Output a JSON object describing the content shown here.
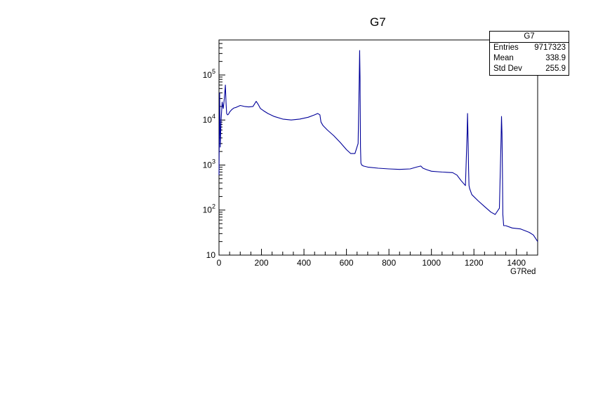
{
  "chart_data": {
    "type": "line",
    "title": "G7",
    "xlabel": "G7Red",
    "ylabel": "",
    "xlim": [
      0,
      1500
    ],
    "ylim": [
      10,
      600000
    ],
    "ylog": true,
    "xticks": [
      0,
      200,
      400,
      600,
      800,
      1000,
      1200,
      1400
    ],
    "xtick_labels": [
      "0",
      "200",
      "400",
      "600",
      "800",
      "1000",
      "1200",
      "1400"
    ],
    "yticks": [
      10,
      100,
      1000,
      10000,
      100000
    ],
    "ytick_labels": [
      {
        "base": "10",
        "exp": ""
      },
      {
        "base": "10",
        "exp": "2"
      },
      {
        "base": "10",
        "exp": "3"
      },
      {
        "base": "10",
        "exp": "4"
      },
      {
        "base": "10",
        "exp": "5"
      }
    ],
    "line_color": "#000099",
    "stats": {
      "title": "G7",
      "rows": [
        {
          "key": "Entries",
          "value": "9717323"
        },
        {
          "key": "Mean",
          "value": "338.9"
        },
        {
          "key": "Std Dev",
          "value": "255.9"
        }
      ]
    },
    "series": [
      {
        "x": [
          0,
          3,
          6,
          10,
          15,
          20,
          25,
          30,
          33,
          36,
          40,
          45,
          50,
          60,
          70,
          80,
          100,
          120,
          140,
          160,
          175,
          185,
          195,
          210,
          230,
          260,
          300,
          340,
          380,
          420,
          450,
          465,
          475,
          480,
          490,
          510,
          540,
          570,
          600,
          620,
          640,
          655,
          660,
          662,
          664,
          666,
          668,
          672,
          680,
          700,
          750,
          800,
          850,
          900,
          930,
          950,
          960,
          980,
          1000,
          1050,
          1100,
          1120,
          1140,
          1160,
          1168,
          1170,
          1173,
          1175,
          1177,
          1180,
          1190,
          1220,
          1250,
          1280,
          1300,
          1320,
          1328,
          1330,
          1332,
          1334,
          1336,
          1338,
          1340,
          1350,
          1380,
          1420,
          1460,
          1480,
          1500
        ],
        "y": [
          600,
          40000,
          2500,
          10000,
          25000,
          18000,
          30000,
          60000,
          25000,
          14000,
          13000,
          13500,
          15000,
          17000,
          18500,
          19000,
          21000,
          20000,
          19500,
          20000,
          26000,
          22000,
          18000,
          16000,
          14000,
          12000,
          10500,
          10000,
          10500,
          11500,
          13000,
          14000,
          13000,
          9000,
          7500,
          6000,
          4500,
          3200,
          2200,
          1800,
          1800,
          3000,
          80000,
          350000,
          80000,
          2500,
          1100,
          1000,
          950,
          900,
          850,
          820,
          800,
          820,
          900,
          950,
          850,
          780,
          730,
          700,
          680,
          600,
          450,
          350,
          5000,
          14000,
          3000,
          800,
          350,
          300,
          220,
          160,
          120,
          90,
          80,
          110,
          4000,
          12000,
          5000,
          800,
          80,
          60,
          45,
          45,
          40,
          38,
          32,
          28,
          20
        ]
      }
    ]
  }
}
